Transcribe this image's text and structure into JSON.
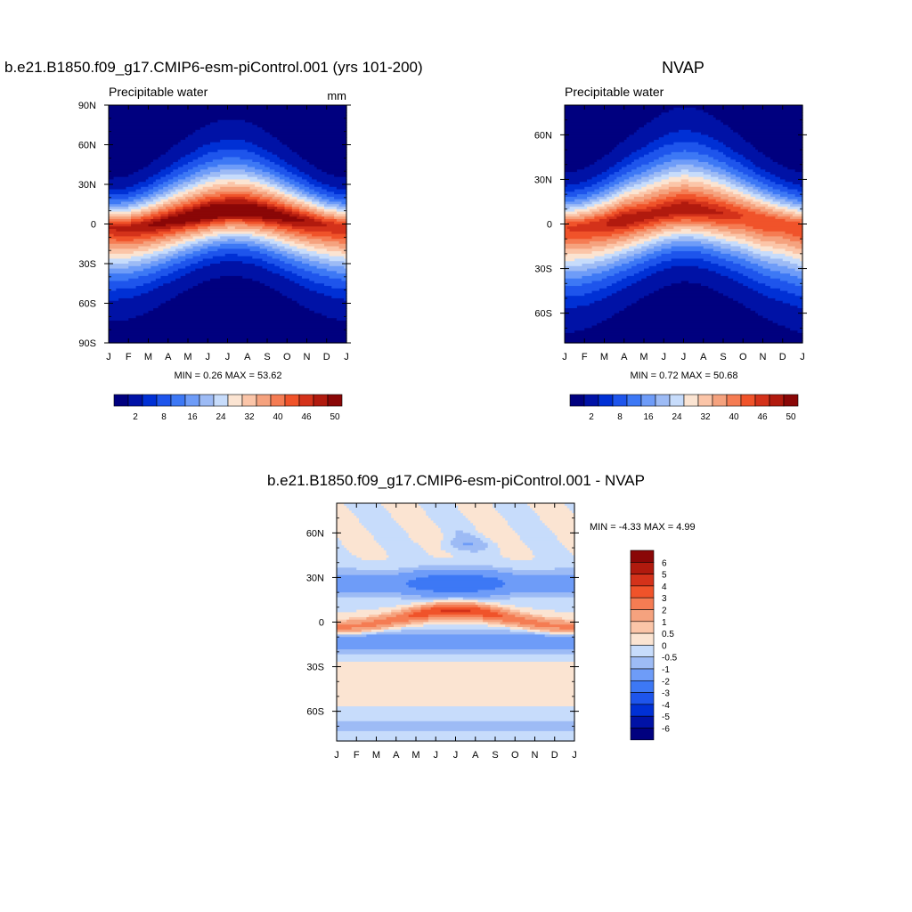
{
  "chart_data": [
    {
      "type": "heatmap",
      "id": "model",
      "title": "b.e21.B1850.f09_g17.CMIP6-esm-piControl.001 (yrs 101-200)",
      "left_label": "Precipitable water",
      "units": "mm",
      "x_ticks": [
        "J",
        "F",
        "M",
        "A",
        "M",
        "J",
        "J",
        "A",
        "S",
        "O",
        "N",
        "D",
        "J"
      ],
      "y_ticks": [
        "90N",
        "60N",
        "30N",
        "0",
        "30S",
        "60S",
        "90S"
      ],
      "y_tick_values": [
        90,
        60,
        30,
        0,
        -30,
        -60,
        -90
      ],
      "ylim": [
        -90,
        90
      ],
      "stats_label": "MIN =   0.26 MAX =  53.62",
      "min": 0.26,
      "max": 53.62,
      "colorbar_labels": [
        "2",
        "8",
        "16",
        "24",
        "32",
        "40",
        "46",
        "50"
      ],
      "colorbar_label_index": [
        1,
        3,
        5,
        7,
        9,
        11,
        13,
        15
      ],
      "peak_lat_by_month": [
        -3,
        -3,
        -1,
        2,
        5,
        8,
        10,
        10,
        8,
        5,
        2,
        -1,
        -3
      ],
      "peak_value_by_month": [
        48,
        49,
        50,
        51,
        52,
        53,
        53,
        53,
        52,
        51,
        50,
        48,
        48
      ]
    },
    {
      "type": "heatmap",
      "id": "obs",
      "title": "NVAP",
      "left_label": "Precipitable water",
      "x_ticks": [
        "J",
        "F",
        "M",
        "A",
        "M",
        "J",
        "J",
        "A",
        "S",
        "O",
        "N",
        "D",
        "J"
      ],
      "y_ticks": [
        "60N",
        "30N",
        "0",
        "30S",
        "60S"
      ],
      "y_tick_values": [
        60,
        30,
        0,
        -30,
        -60
      ],
      "ylim": [
        -80,
        80
      ],
      "stats_label": "MIN =   0.72 MAX =  50.68",
      "min": 0.72,
      "max": 50.68,
      "colorbar_labels": [
        "2",
        "8",
        "16",
        "24",
        "32",
        "40",
        "46",
        "50"
      ],
      "colorbar_label_index": [
        1,
        3,
        5,
        7,
        9,
        11,
        13,
        15
      ],
      "peak_lat_by_month": [
        -3,
        -2,
        0,
        3,
        5,
        8,
        10,
        9,
        7,
        5,
        2,
        0,
        -3
      ],
      "peak_value_by_month": [
        46,
        47,
        48,
        50,
        49,
        49,
        50,
        49,
        48,
        46,
        46,
        45,
        46
      ]
    },
    {
      "type": "heatmap",
      "id": "diff",
      "title": "b.e21.B1850.f09_g17.CMIP6-esm-piControl.001 - NVAP",
      "x_ticks": [
        "J",
        "F",
        "M",
        "A",
        "M",
        "J",
        "J",
        "A",
        "S",
        "O",
        "N",
        "D",
        "J"
      ],
      "y_ticks": [
        "60N",
        "30N",
        "0",
        "30S",
        "60S"
      ],
      "y_tick_values": [
        60,
        30,
        0,
        -30,
        -60
      ],
      "ylim": [
        -80,
        80
      ],
      "stats_label": "MIN =  -4.33 MAX =   4.99",
      "min": -4.33,
      "max": 4.99,
      "colorbar_levels": [
        "6",
        "5",
        "4",
        "3",
        "2",
        "1",
        "0.5",
        "0",
        "-0.5",
        "-1",
        "-2",
        "-3",
        "-4",
        "-5",
        "-6"
      ]
    }
  ],
  "palettes": {
    "pw": [
      "#00007f",
      "#0012a6",
      "#0030d5",
      "#1e55ec",
      "#3d78f5",
      "#6e9cf8",
      "#9dbbf5",
      "#c7dcfb",
      "#fbe4d2",
      "#fbc5a8",
      "#f5a27e",
      "#f57c53",
      "#f0532a",
      "#d4321a",
      "#b11a0e",
      "#8a0707"
    ],
    "diff": [
      "#00007f",
      "#0012a6",
      "#0030d5",
      "#1e55ec",
      "#3d78f5",
      "#6e9cf8",
      "#9dbbf5",
      "#c7dcfb",
      "#fbe4d2",
      "#fbc5a8",
      "#f5a27e",
      "#f57c53",
      "#f0532a",
      "#d4321a",
      "#b11a0e",
      "#8a0707"
    ]
  }
}
